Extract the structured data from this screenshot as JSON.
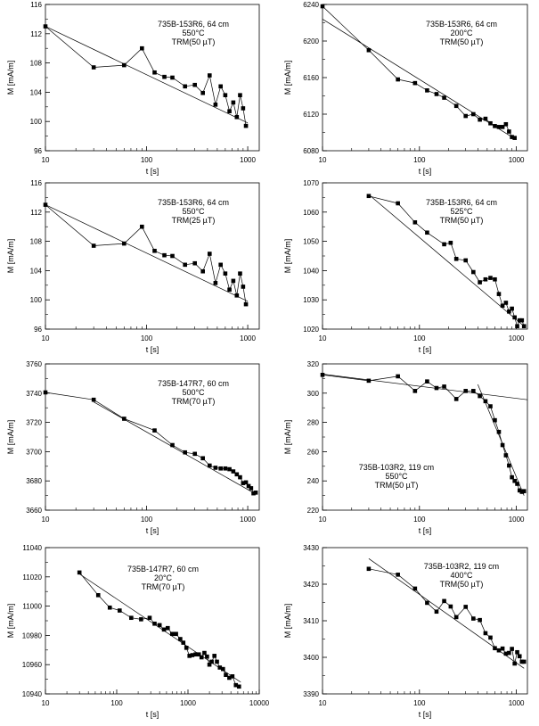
{
  "chart_data": [
    {
      "type": "scatter",
      "annotation": [
        "735B-153R6, 64 cm",
        "550°C",
        "TRM(50 µT)"
      ],
      "xlabel": "t [s]",
      "ylabel": "M [mA/m]",
      "xscale": "log",
      "xlim": [
        10,
        1300
      ],
      "ylim": [
        96,
        116
      ],
      "xticks": [
        10,
        100,
        1000
      ],
      "xtick_labels": [
        "10",
        "100",
        "1000"
      ],
      "yticks": [
        96,
        100,
        104,
        108,
        112,
        116
      ],
      "ytick_labels": [
        "96",
        "100",
        "104",
        "108",
        "112",
        "116"
      ],
      "points": [
        [
          10,
          113.0
        ],
        [
          30,
          107.4
        ],
        [
          60,
          107.7
        ],
        [
          90,
          110.0
        ],
        [
          120,
          106.7
        ],
        [
          150,
          106.1
        ],
        [
          180,
          106.0
        ],
        [
          240,
          104.8
        ],
        [
          300,
          105.0
        ],
        [
          360,
          103.9
        ],
        [
          420,
          106.3
        ],
        [
          480,
          102.3
        ],
        [
          540,
          104.8
        ],
        [
          600,
          103.6
        ],
        [
          660,
          101.4
        ],
        [
          720,
          102.6
        ],
        [
          780,
          100.6
        ],
        [
          840,
          103.6
        ],
        [
          900,
          101.8
        ],
        [
          960,
          99.4
        ]
      ],
      "fit_lines": [
        [
          [
            10,
            113.0
          ],
          [
            1000,
            99.8
          ]
        ]
      ]
    },
    {
      "type": "scatter",
      "annotation": [
        "735B-153R6, 64 cm",
        "200°C",
        "TRM(50 µT)"
      ],
      "xlabel": "t [s]",
      "ylabel": "M [mA/m]",
      "xscale": "log",
      "xlim": [
        10,
        1300
      ],
      "ylim": [
        6080,
        6240
      ],
      "xticks": [
        10,
        100,
        1000
      ],
      "xtick_labels": [
        "10",
        "100",
        "1000"
      ],
      "yticks": [
        6080,
        6120,
        6160,
        6200,
        6240
      ],
      "ytick_labels": [
        "6080",
        "6120",
        "6160",
        "6200",
        "6240"
      ],
      "points": [
        [
          10,
          6238
        ],
        [
          30,
          6190
        ],
        [
          60,
          6158
        ],
        [
          90,
          6154
        ],
        [
          120,
          6146
        ],
        [
          150,
          6142
        ],
        [
          180,
          6138
        ],
        [
          240,
          6129
        ],
        [
          300,
          6118
        ],
        [
          360,
          6120
        ],
        [
          420,
          6114
        ],
        [
          480,
          6115
        ],
        [
          540,
          6110
        ],
        [
          600,
          6107
        ],
        [
          660,
          6106
        ],
        [
          720,
          6106
        ],
        [
          780,
          6109
        ],
        [
          840,
          6101
        ],
        [
          900,
          6095
        ],
        [
          960,
          6094
        ]
      ],
      "fit_lines": [
        [
          [
            10,
            6224
          ],
          [
            1000,
            6092
          ]
        ]
      ]
    },
    {
      "type": "scatter",
      "annotation": [
        "735B-153R6, 64 cm",
        "550°C",
        "TRM(25 µT)"
      ],
      "xlabel": "t [s]",
      "ylabel": "M [mA/m]",
      "xscale": "log",
      "xlim": [
        10,
        1300
      ],
      "ylim": [
        96,
        116
      ],
      "xticks": [
        10,
        100,
        1000
      ],
      "xtick_labels": [
        "10",
        "100",
        "1000"
      ],
      "yticks": [
        96,
        100,
        104,
        108,
        112,
        116
      ],
      "ytick_labels": [
        "96",
        "100",
        "104",
        "108",
        "112",
        "116"
      ],
      "points": [
        [
          10,
          113.0
        ],
        [
          30,
          107.4
        ],
        [
          60,
          107.7
        ],
        [
          90,
          110.0
        ],
        [
          120,
          106.7
        ],
        [
          150,
          106.1
        ],
        [
          180,
          106.0
        ],
        [
          240,
          104.8
        ],
        [
          300,
          105.0
        ],
        [
          360,
          103.9
        ],
        [
          420,
          106.3
        ],
        [
          480,
          102.3
        ],
        [
          540,
          104.8
        ],
        [
          600,
          103.6
        ],
        [
          660,
          101.4
        ],
        [
          720,
          102.6
        ],
        [
          780,
          100.6
        ],
        [
          840,
          103.6
        ],
        [
          900,
          101.8
        ],
        [
          960,
          99.4
        ]
      ],
      "fit_lines": [
        [
          [
            10,
            113.0
          ],
          [
            1000,
            99.8
          ]
        ]
      ]
    },
    {
      "type": "scatter",
      "annotation": [
        "735B-153R6, 64 cm",
        "525°C",
        "TRM(50 µT)"
      ],
      "xlabel": "t [s]",
      "ylabel": "M [mA/m]",
      "xscale": "log",
      "xlim": [
        10,
        1300
      ],
      "ylim": [
        1020,
        1070
      ],
      "xticks": [
        10,
        100,
        1000
      ],
      "xtick_labels": [
        "10",
        "100",
        "1000"
      ],
      "yticks": [
        1020,
        1030,
        1040,
        1050,
        1060,
        1070
      ],
      "ytick_labels": [
        "1020",
        "1030",
        "1040",
        "1050",
        "1060",
        "1070"
      ],
      "points": [
        [
          30,
          1065.5
        ],
        [
          60,
          1063.0
        ],
        [
          90,
          1056.5
        ],
        [
          120,
          1053.0
        ],
        [
          180,
          1049.0
        ],
        [
          210,
          1049.5
        ],
        [
          240,
          1044.0
        ],
        [
          300,
          1043.5
        ],
        [
          360,
          1039.5
        ],
        [
          420,
          1036.0
        ],
        [
          480,
          1037.0
        ],
        [
          540,
          1037.5
        ],
        [
          600,
          1037.0
        ],
        [
          660,
          1032.0
        ],
        [
          720,
          1028.0
        ],
        [
          780,
          1029.0
        ],
        [
          840,
          1026.0
        ],
        [
          900,
          1027.0
        ],
        [
          960,
          1024.0
        ],
        [
          1020,
          1021.0
        ],
        [
          1080,
          1023.0
        ],
        [
          1140,
          1023.0
        ],
        [
          1200,
          1021.0
        ]
      ],
      "fit_lines": [
        [
          [
            30,
            1066.0
          ],
          [
            1200,
            1021.0
          ]
        ]
      ]
    },
    {
      "type": "scatter",
      "annotation": [
        "735B-147R7, 60 cm",
        "500°C",
        "TRM(70 µT)"
      ],
      "xlabel": "t [s]",
      "ylabel": "M [mA/m]",
      "xscale": "log",
      "xlim": [
        10,
        1300
      ],
      "ylim": [
        3660,
        3760
      ],
      "xticks": [
        10,
        100,
        1000
      ],
      "xtick_labels": [
        "10",
        "100",
        "1000"
      ],
      "yticks": [
        3660,
        3680,
        3700,
        3720,
        3740,
        3760
      ],
      "ytick_labels": [
        "3660",
        "3680",
        "3700",
        "3720",
        "3740",
        "3760"
      ],
      "points": [
        [
          10,
          3740.5
        ],
        [
          30,
          3735.5
        ],
        [
          60,
          3722.5
        ],
        [
          120,
          3714.5
        ],
        [
          180,
          3704.5
        ],
        [
          240,
          3699.5
        ],
        [
          300,
          3698.5
        ],
        [
          360,
          3695.5
        ],
        [
          420,
          3690.5
        ],
        [
          480,
          3689.0
        ],
        [
          540,
          3688.5
        ],
        [
          600,
          3688.5
        ],
        [
          660,
          3688.0
        ],
        [
          720,
          3686.5
        ],
        [
          780,
          3684.5
        ],
        [
          840,
          3682.5
        ],
        [
          900,
          3678.5
        ],
        [
          960,
          3679.0
        ],
        [
          1020,
          3676.5
        ],
        [
          1080,
          3675.0
        ],
        [
          1140,
          3671.5
        ],
        [
          1200,
          3672.0
        ]
      ],
      "fit_lines": [
        [
          [
            30,
            3734.0
          ],
          [
            1200,
            3671.0
          ]
        ]
      ]
    },
    {
      "type": "scatter",
      "annotation": [
        "735B-103R2, 119 cm",
        "550°C",
        "TRM(50 µT)"
      ],
      "xlabel": "t [s]",
      "ylabel": "M [mA/m]",
      "xscale": "log",
      "xlim": [
        10,
        1300
      ],
      "ylim": [
        220,
        320
      ],
      "xticks": [
        10,
        100,
        1000
      ],
      "xtick_labels": [
        "10",
        "100",
        "1000"
      ],
      "yticks": [
        220,
        240,
        260,
        280,
        300,
        320
      ],
      "ytick_labels": [
        "220",
        "240",
        "260",
        "280",
        "300",
        "320"
      ],
      "points": [
        [
          10,
          312.5
        ],
        [
          30,
          308.5
        ],
        [
          60,
          311.5
        ],
        [
          90,
          301.5
        ],
        [
          120,
          308.0
        ],
        [
          150,
          303.5
        ],
        [
          180,
          304.5
        ],
        [
          240,
          296.0
        ],
        [
          300,
          301.5
        ],
        [
          360,
          301.5
        ],
        [
          420,
          298.0
        ],
        [
          480,
          294.5
        ],
        [
          540,
          291.0
        ],
        [
          600,
          281.5
        ],
        [
          660,
          273.5
        ],
        [
          720,
          264.5
        ],
        [
          780,
          257.5
        ],
        [
          840,
          250.5
        ],
        [
          900,
          242.5
        ],
        [
          960,
          240.0
        ],
        [
          1020,
          238.0
        ],
        [
          1080,
          233.5
        ],
        [
          1140,
          232.5
        ],
        [
          1200,
          233.0
        ]
      ],
      "fit_lines": [
        [
          [
            10,
            313.0
          ],
          [
            1300,
            295.5
          ]
        ],
        [
          [
            400,
            306.0
          ],
          [
            1200,
            230.0
          ]
        ]
      ]
    },
    {
      "type": "scatter",
      "annotation": [
        "735B-147R7, 60 cm",
        "20°C",
        "TRM(70 µT)"
      ],
      "xlabel": "t [s]",
      "ylabel": "M [mA/m]",
      "xscale": "log",
      "xlim": [
        10,
        10000
      ],
      "ylim": [
        10940,
        11040
      ],
      "xticks": [
        10,
        100,
        1000,
        10000
      ],
      "xtick_labels": [
        "10",
        "100",
        "1000",
        "10000"
      ],
      "yticks": [
        10940,
        10960,
        10980,
        11000,
        11020,
        11040
      ],
      "ytick_labels": [
        "10940",
        "10960",
        "10980",
        "11000",
        "11020",
        "11040"
      ],
      "points": [
        [
          30,
          11023.0
        ],
        [
          55,
          11007.5
        ],
        [
          80,
          10999.0
        ],
        [
          110,
          10997.0
        ],
        [
          160,
          10992.0
        ],
        [
          220,
          10991.0
        ],
        [
          290,
          10992.0
        ],
        [
          340,
          10988.0
        ],
        [
          400,
          10987.0
        ],
        [
          460,
          10984.0
        ],
        [
          520,
          10985.0
        ],
        [
          600,
          10981.0
        ],
        [
          680,
          10981.0
        ],
        [
          780,
          10977.5
        ],
        [
          860,
          10975.0
        ],
        [
          950,
          10971.5
        ],
        [
          1050,
          10966.0
        ],
        [
          1150,
          10966.5
        ],
        [
          1280,
          10967.0
        ],
        [
          1420,
          10967.0
        ],
        [
          1550,
          10965.0
        ],
        [
          1700,
          10968.0
        ],
        [
          1850,
          10965.5
        ],
        [
          2000,
          10960.0
        ],
        [
          2150,
          10962.0
        ],
        [
          2350,
          10966.0
        ],
        [
          2550,
          10962.0
        ],
        [
          2800,
          10958.0
        ],
        [
          3100,
          10957.0
        ],
        [
          3400,
          10953.0
        ],
        [
          3800,
          10951.0
        ],
        [
          4200,
          10952.0
        ],
        [
          4700,
          10946.0
        ],
        [
          5200,
          10945.0
        ]
      ],
      "fit_lines": [
        [
          [
            30,
            11022.0
          ],
          [
            5500,
            10948.0
          ]
        ]
      ]
    },
    {
      "type": "scatter",
      "annotation": [
        "735B-103R2, 119 cm",
        "400°C",
        "TRM(50 µT)"
      ],
      "xlabel": "t [s]",
      "ylabel": "M [mA/m]",
      "xscale": "log",
      "xlim": [
        10,
        1300
      ],
      "ylim": [
        3390,
        3430
      ],
      "xticks": [
        10,
        100,
        1000
      ],
      "xtick_labels": [
        "10",
        "100",
        "1000"
      ],
      "yticks": [
        3390,
        3400,
        3410,
        3420,
        3430
      ],
      "ytick_labels": [
        "3390",
        "3400",
        "3410",
        "3420",
        "3430"
      ],
      "points": [
        [
          30,
          3424.2
        ],
        [
          60,
          3422.6
        ],
        [
          90,
          3418.8
        ],
        [
          120,
          3414.9
        ],
        [
          150,
          3412.5
        ],
        [
          180,
          3415.4
        ],
        [
          210,
          3413.9
        ],
        [
          240,
          3411.0
        ],
        [
          300,
          3413.8
        ],
        [
          360,
          3410.6
        ],
        [
          420,
          3410.2
        ],
        [
          480,
          3406.6
        ],
        [
          540,
          3405.4
        ],
        [
          600,
          3402.5
        ],
        [
          660,
          3401.9
        ],
        [
          720,
          3402.4
        ],
        [
          780,
          3401.0
        ],
        [
          840,
          3401.2
        ],
        [
          900,
          3402.3
        ],
        [
          960,
          3398.3
        ],
        [
          1020,
          3401.4
        ],
        [
          1080,
          3400.3
        ],
        [
          1140,
          3398.8
        ],
        [
          1200,
          3398.8
        ]
      ],
      "fit_lines": [
        [
          [
            30,
            3427.0
          ],
          [
            1200,
            3397.0
          ]
        ]
      ]
    }
  ]
}
